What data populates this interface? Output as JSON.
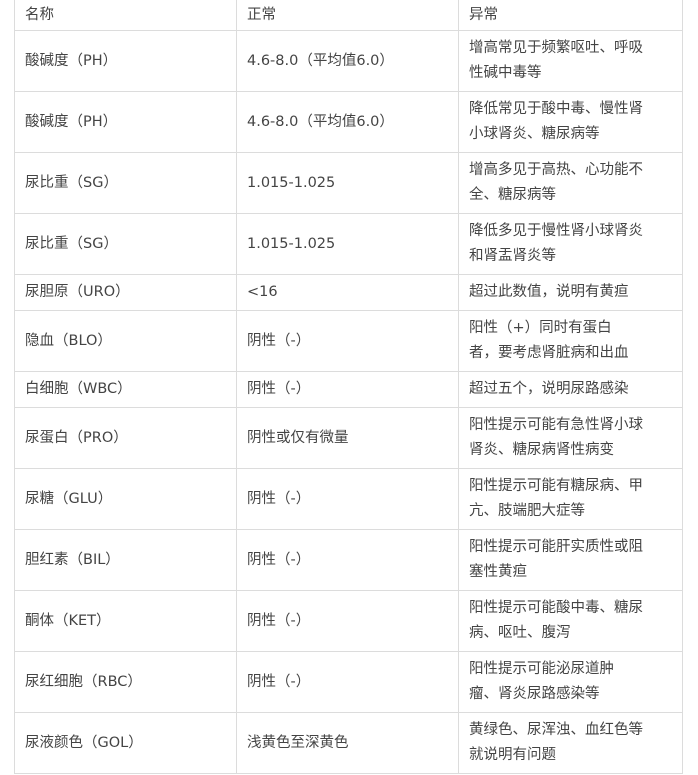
{
  "headers": [
    "名称",
    "正常",
    "异常"
  ],
  "rows": [
    {
      "name": "酸碱度（PH）",
      "normal": "4.6-8.0（平均值6.0）",
      "abnormal": "增高常见于频繁呕吐、呼吸\n性碱中毒等"
    },
    {
      "name": "酸碱度（PH）",
      "normal": "4.6-8.0（平均值6.0）",
      "abnormal": "降低常见于酸中毒、慢性肾\n小球肾炎、糖尿病等"
    },
    {
      "name": "尿比重（SG）",
      "normal": "1.015-1.025",
      "abnormal": "增高多见于高热、心功能不\n全、糖尿病等"
    },
    {
      "name": "尿比重（SG）",
      "normal": "1.015-1.025",
      "abnormal": "降低多见于慢性肾小球肾炎\n和肾盂肾炎等"
    },
    {
      "name": "尿胆原（URO）",
      "normal": "<16",
      "abnormal": "超过此数值，说明有黄疸"
    },
    {
      "name": "隐血（BLO）",
      "normal": "阴性（-）",
      "abnormal": "阳性（+）同时有蛋白\n者，要考虑肾脏病和出血"
    },
    {
      "name": "白细胞（WBC）",
      "normal": "阴性（-）",
      "abnormal": "超过五个，说明尿路感染"
    },
    {
      "name": "尿蛋白（PRO）",
      "normal": "阴性或仅有微量",
      "abnormal": "阳性提示可能有急性肾小球\n肾炎、糖尿病肾性病变"
    },
    {
      "name": "尿糖（GLU）",
      "normal": "阴性（-）",
      "abnormal": "阳性提示可能有糖尿病、甲\n亢、肢端肥大症等"
    },
    {
      "name": "胆红素（BIL）",
      "normal": "阴性（-）",
      "abnormal": "阳性提示可能肝实质性或阻\n塞性黄疸"
    },
    {
      "name": "酮体（KET）",
      "normal": "阴性（-）",
      "abnormal": "阳性提示可能酸中毒、糖尿\n病、呕吐、腹泻"
    },
    {
      "name": "尿红细胞（RBC）",
      "normal": "阴性（-）",
      "abnormal": "阳性提示可能泌尿道肿\n瘤、肾炎尿路感染等"
    },
    {
      "name": "尿液颜色（GOL）",
      "normal": "浅黄色至深黄色",
      "abnormal": "黄绿色、尿浑浊、血红色等\n就说明有问题"
    }
  ]
}
